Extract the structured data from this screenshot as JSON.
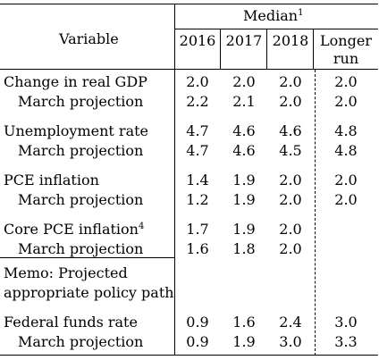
{
  "header": {
    "variable_label": "Variable",
    "median_label": "Median",
    "median_sup": "1",
    "years": [
      "2016",
      "2017",
      "2018"
    ],
    "longer_run_line1": "Longer",
    "longer_run_line2": "run"
  },
  "rows": [
    {
      "label": "Change in real GDP",
      "sup": "",
      "values": [
        "2.0",
        "2.0",
        "2.0",
        "2.0"
      ]
    },
    {
      "label": "March projection",
      "sup": "",
      "values": [
        "2.2",
        "2.1",
        "2.0",
        "2.0"
      ]
    },
    {
      "label": "Unemployment rate",
      "sup": "",
      "values": [
        "4.7",
        "4.6",
        "4.6",
        "4.8"
      ]
    },
    {
      "label": "March projection",
      "sup": "",
      "values": [
        "4.7",
        "4.6",
        "4.5",
        "4.8"
      ]
    },
    {
      "label": "PCE inflation",
      "sup": "",
      "values": [
        "1.4",
        "1.9",
        "2.0",
        "2.0"
      ]
    },
    {
      "label": "March projection",
      "sup": "",
      "values": [
        "1.2",
        "1.9",
        "2.0",
        "2.0"
      ]
    },
    {
      "label": "Core PCE inflation",
      "sup": "4",
      "values": [
        "1.7",
        "1.9",
        "2.0",
        ""
      ]
    },
    {
      "label": "March projection",
      "sup": "",
      "values": [
        "1.6",
        "1.8",
        "2.0",
        ""
      ]
    },
    {
      "label": "Federal funds rate",
      "sup": "",
      "values": [
        "0.9",
        "1.6",
        "2.4",
        "3.0"
      ]
    },
    {
      "label": "March projection",
      "sup": "",
      "values": [
        "0.9",
        "1.9",
        "3.0",
        "3.3"
      ]
    }
  ],
  "memo": {
    "line1": "Memo: Projected",
    "line2": "appropriate policy path"
  }
}
